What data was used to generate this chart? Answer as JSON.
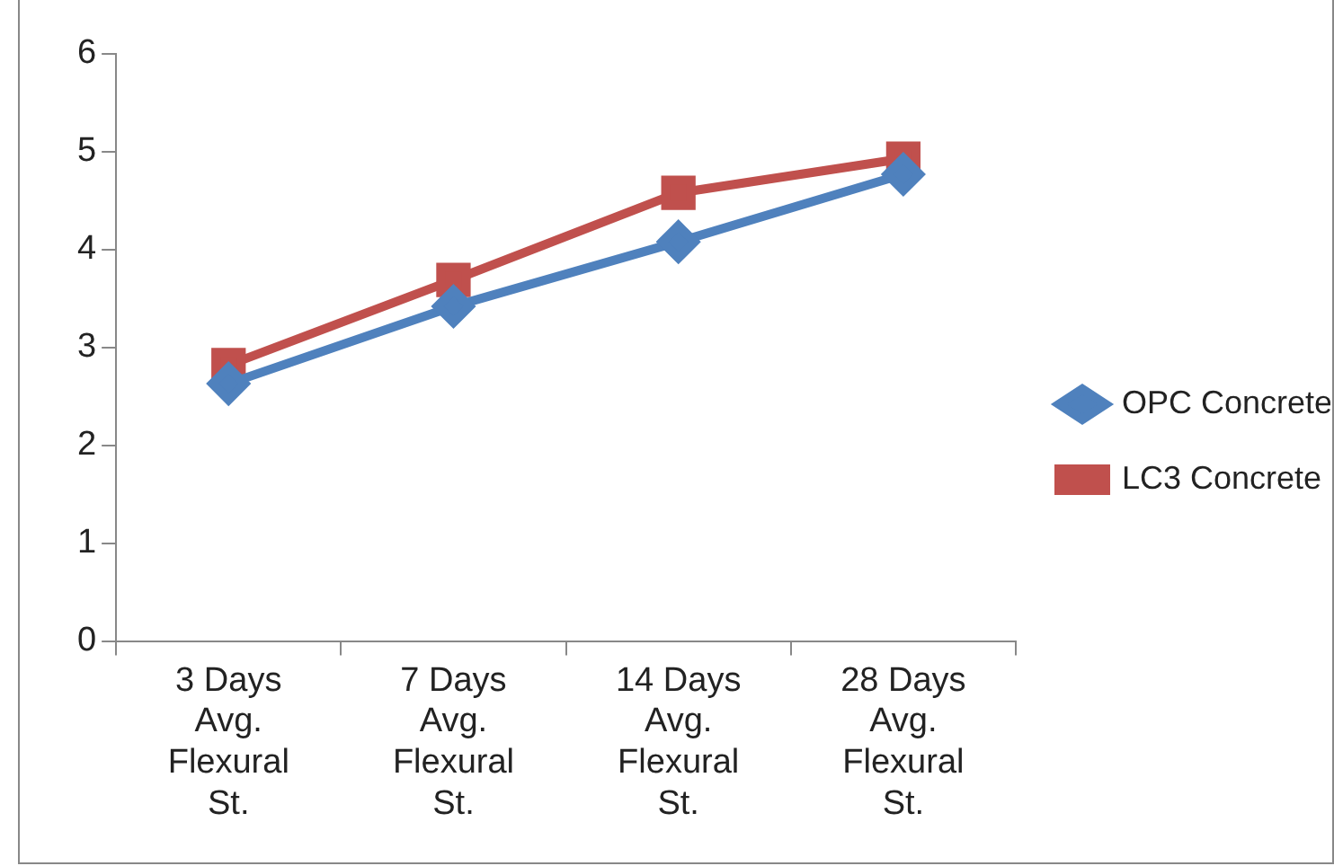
{
  "chart_data": {
    "type": "line",
    "categories": [
      "3 Days Avg. Flexural St.",
      "7 Days Avg. Flexural St.",
      "14 Days Avg. Flexural St.",
      "28 Days Avg. Flexural St."
    ],
    "series": [
      {
        "name": "OPC Concrete",
        "color": "#4f81bd",
        "marker": "diamond",
        "values": [
          2.63,
          3.42,
          4.08,
          4.77
        ]
      },
      {
        "name": "LC3 Concrete",
        "color": "#c0504d",
        "marker": "square",
        "values": [
          2.82,
          3.69,
          4.58,
          4.93
        ]
      }
    ],
    "ylim": [
      0,
      6
    ],
    "yticks": [
      0,
      1,
      2,
      3,
      4,
      5,
      6
    ],
    "grid": false,
    "legend": "right",
    "line_style": "solid"
  }
}
